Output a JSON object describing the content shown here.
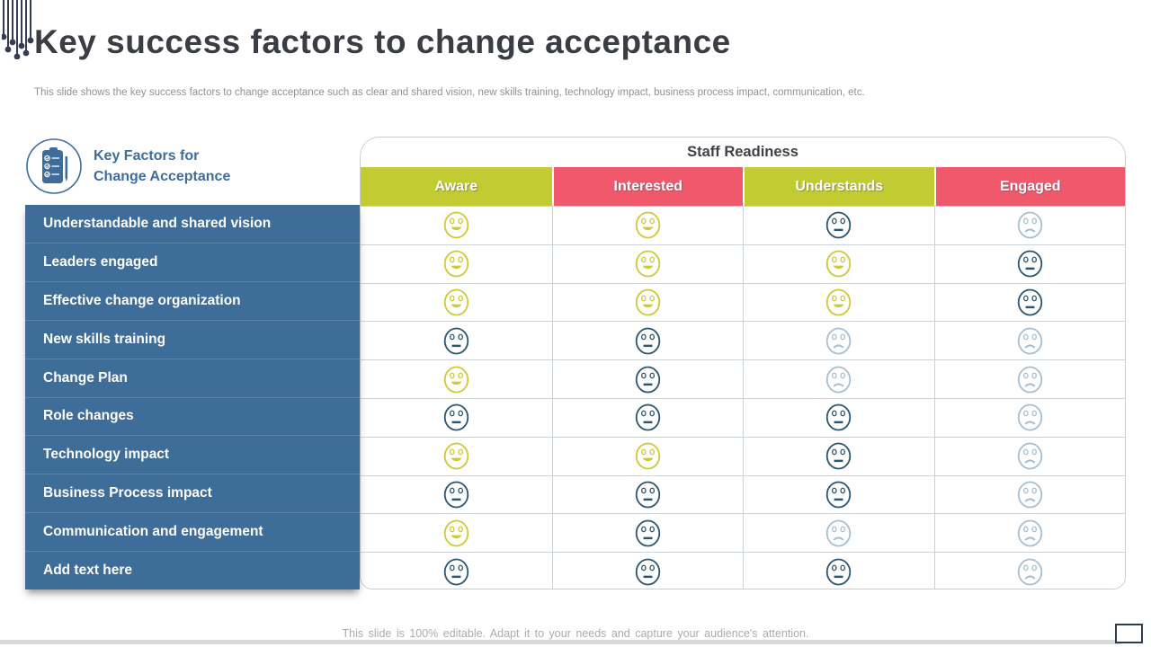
{
  "slide": {
    "title": "Key success factors to change acceptance",
    "subtitle": "This slide shows the key success factors to change acceptance such as clear and shared vision, new skills training, technology impact, business process impact, communication, etc.",
    "footer": "This slide is 100% editable. Adapt it to your needs and capture your audience's attention."
  },
  "icons": {
    "top_left": "circuit-traces-icon",
    "left_header": "clipboard-checklist-icon",
    "bottom_right": "screen-frame-icon",
    "happy": "happy-face-icon",
    "neutral": "neutral-face-icon",
    "sad": "sad-face-icon"
  },
  "colors": {
    "lime": "#c3cb32",
    "pink": "#f0596b",
    "label_blue": "#3f6d99",
    "accent_blue": "#3e6d9c",
    "title_text": "#3b3d45",
    "face_happy": "#cfc937",
    "face_neutral": "#2c566f",
    "face_sad": "#a7bfd0"
  },
  "table": {
    "left_header": {
      "line1": "Key Factors for",
      "line2": "Change Acceptance"
    },
    "group_header": "Staff Readiness",
    "columns": [
      {
        "label": "Aware",
        "color": "#c3cb32"
      },
      {
        "label": "Interested",
        "color": "#f0596b"
      },
      {
        "label": "Understands",
        "color": "#c3cb32"
      },
      {
        "label": "Engaged",
        "color": "#f0596b"
      }
    ],
    "face_colors": {
      "happy": "#cfc937",
      "neutral": "#2c566f",
      "sad": "#a7bfd0"
    },
    "rows": [
      {
        "label": "Understandable and shared vision",
        "ratings": [
          "happy",
          "happy",
          "neutral",
          "sad"
        ]
      },
      {
        "label": "Leaders engaged",
        "ratings": [
          "happy",
          "happy",
          "happy",
          "neutral"
        ]
      },
      {
        "label": "Effective change organization",
        "ratings": [
          "happy",
          "happy",
          "happy",
          "neutral"
        ]
      },
      {
        "label": "New skills training",
        "ratings": [
          "neutral",
          "neutral",
          "sad",
          "sad"
        ]
      },
      {
        "label": "Change Plan",
        "ratings": [
          "happy",
          "neutral",
          "sad",
          "sad"
        ]
      },
      {
        "label": "Role changes",
        "ratings": [
          "neutral",
          "neutral",
          "neutral",
          "sad"
        ]
      },
      {
        "label": "Technology impact",
        "ratings": [
          "happy",
          "happy",
          "neutral",
          "sad"
        ]
      },
      {
        "label": "Business Process impact",
        "ratings": [
          "neutral",
          "neutral",
          "neutral",
          "sad"
        ]
      },
      {
        "label": "Communication and engagement",
        "ratings": [
          "happy",
          "neutral",
          "sad",
          "sad"
        ]
      },
      {
        "label": "Add text here",
        "ratings": [
          "neutral",
          "neutral",
          "neutral",
          "sad"
        ]
      }
    ]
  }
}
